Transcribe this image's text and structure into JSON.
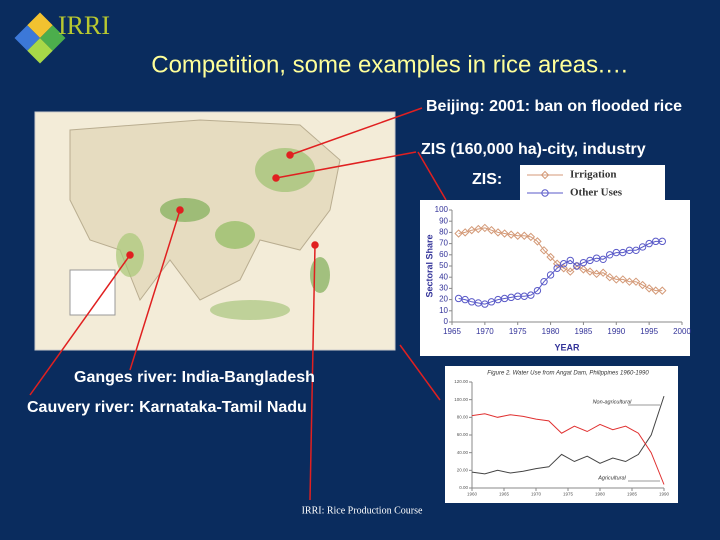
{
  "header": {
    "logo": "IRRI",
    "title": "Competition, some examples in rice areas.…"
  },
  "annotations": [
    "Beijing: 2001: ban on flooded rice",
    "ZIS (160,000 ha)-city, industry",
    "ZIS:",
    "Ganges river: India-Bangladesh",
    "Cauvery river: Karnataka-Tamil Nadu"
  ],
  "footer": "IRRI: Rice Production Course",
  "chart_data": [
    {
      "type": "line",
      "x_label": "YEAR",
      "y_label": "Sectoral Share",
      "x": [
        1966,
        1967,
        1968,
        1969,
        1970,
        1971,
        1972,
        1973,
        1974,
        1975,
        1976,
        1977,
        1978,
        1979,
        1980,
        1981,
        1982,
        1983,
        1984,
        1985,
        1986,
        1987,
        1988,
        1989,
        1990,
        1991,
        1992,
        1993,
        1994,
        1995,
        1996,
        1997
      ],
      "xlim": [
        1965,
        2000
      ],
      "xticks": [
        1965,
        1970,
        1975,
        1980,
        1985,
        1990,
        1995,
        2000
      ],
      "ylim": [
        0,
        100
      ],
      "yticks": [
        0,
        10,
        20,
        30,
        40,
        50,
        60,
        70,
        80,
        90,
        100
      ],
      "series": [
        {
          "name": "Irrigation",
          "color": "#d49a78",
          "marker": "diamond",
          "values": [
            79,
            80,
            82,
            83,
            84,
            82,
            80,
            79,
            78,
            77,
            77,
            76,
            72,
            64,
            58,
            52,
            48,
            45,
            50,
            47,
            45,
            43,
            44,
            40,
            38,
            38,
            36,
            36,
            33,
            30,
            28,
            28
          ]
        },
        {
          "name": "Other Uses",
          "color": "#5a5ac8",
          "marker": "circle",
          "values": [
            21,
            20,
            18,
            17,
            16,
            18,
            20,
            21,
            22,
            23,
            23,
            24,
            28,
            36,
            42,
            48,
            52,
            55,
            50,
            53,
            55,
            57,
            56,
            60,
            62,
            62,
            64,
            64,
            67,
            70,
            72,
            72
          ]
        }
      ]
    },
    {
      "type": "line",
      "title": "Figure 2. Water Use from Angat Dam, Philippines 1960-1990",
      "x": [
        1960,
        1962,
        1964,
        1966,
        1968,
        1970,
        1972,
        1974,
        1976,
        1978,
        1980,
        1982,
        1984,
        1986,
        1988,
        1990
      ],
      "xlim": [
        1960,
        1990
      ],
      "xticks": [
        1960,
        1965,
        1970,
        1975,
        1980,
        1985,
        1990
      ],
      "ylim": [
        0,
        120
      ],
      "yticks": [
        {
          "value": 0,
          "label": "0.00"
        },
        {
          "value": 20,
          "label": "20.00"
        },
        {
          "value": 40,
          "label": "40.00"
        },
        {
          "value": 60,
          "label": "60.00"
        },
        {
          "value": 80,
          "label": "80.00"
        },
        {
          "value": 100,
          "label": "100.00"
        },
        {
          "value": 120,
          "label": "120.00"
        }
      ],
      "series": [
        {
          "name": "Non-agricultural",
          "color": "#444444",
          "values": [
            18,
            16,
            20,
            17,
            19,
            22,
            24,
            38,
            30,
            36,
            28,
            34,
            30,
            38,
            60,
            104
          ]
        },
        {
          "name": "Agricultural",
          "color": "#e03030",
          "values": [
            82,
            84,
            80,
            83,
            81,
            78,
            76,
            62,
            70,
            64,
            72,
            66,
            70,
            62,
            40,
            4
          ]
        }
      ]
    }
  ]
}
